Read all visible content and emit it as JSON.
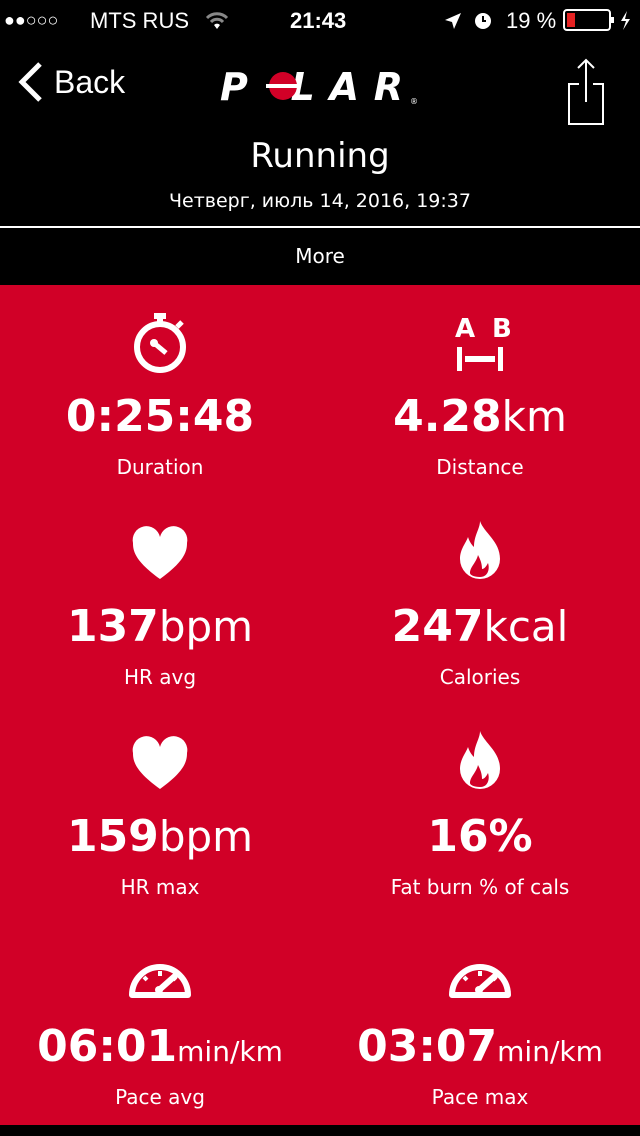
{
  "status_bar": {
    "signal": "●●○○○",
    "carrier": "MTS RUS",
    "time": "21:43",
    "battery": "19 %",
    "battery_level": 0.19
  },
  "nav": {
    "back_label": "Back",
    "logo": "POLAR",
    "share_icon": "share-icon"
  },
  "header": {
    "title": "Running",
    "date": "Четверг, июль 14, 2016, 19:37"
  },
  "more_label": "More",
  "colors": {
    "accent": "#d10027",
    "background": "#000000"
  },
  "stats": [
    {
      "icon": "stopwatch-icon",
      "value": "0:25:48",
      "unit": "",
      "label": "Duration"
    },
    {
      "icon": "distance-ab-icon",
      "value": "4.28",
      "unit": "km",
      "label": "Distance"
    },
    {
      "icon": "heart-icon",
      "value": "137",
      "unit": "bpm",
      "label": "HR avg"
    },
    {
      "icon": "flame-icon",
      "value": "247",
      "unit": "kcal",
      "label": "Calories"
    },
    {
      "icon": "heart-icon",
      "value": "159",
      "unit": "bpm",
      "label": "HR max"
    },
    {
      "icon": "flame-icon",
      "value": "16%",
      "unit": "",
      "label": "Fat burn % of cals"
    },
    {
      "icon": "speedometer-icon",
      "value": "06:01",
      "unit": "min/km",
      "label": "Pace avg"
    },
    {
      "icon": "speedometer-icon",
      "value": "03:07",
      "unit": "min/km",
      "label": "Pace max"
    }
  ]
}
